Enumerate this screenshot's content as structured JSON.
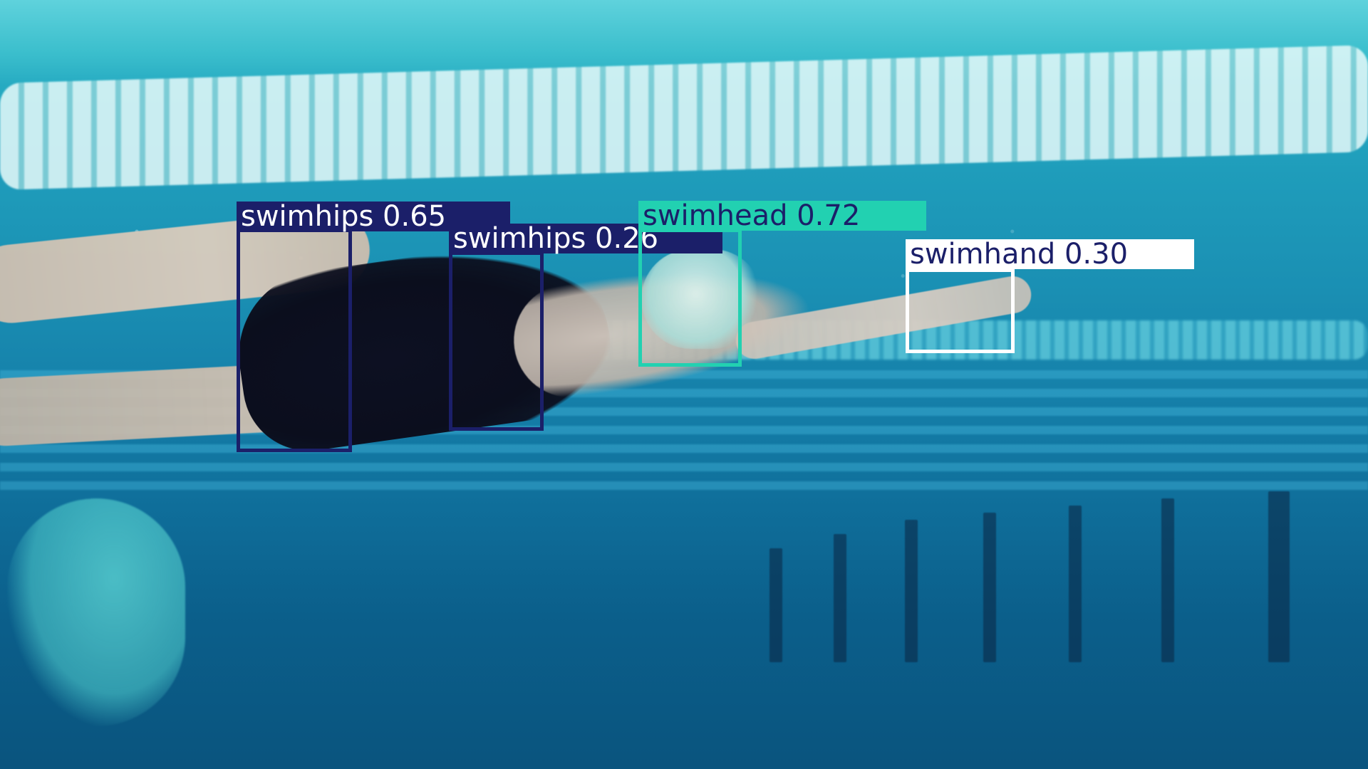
{
  "detections": [
    {
      "label": "swimhips 0.65",
      "colors": {
        "box": "#1b1f69",
        "label_bg": "#1b1f69",
        "label_text": "#ffffff"
      }
    },
    {
      "label": "swimhips 0.26",
      "colors": {
        "box": "#1b1f69",
        "label_bg": "#1b1f69",
        "label_text": "#ffffff"
      }
    },
    {
      "label": "swimhead 0.72",
      "colors": {
        "box": "#22d1b1",
        "label_bg": "#22d1b1",
        "label_text": "#1b1f69"
      }
    },
    {
      "label": "swimhand 0.30",
      "colors": {
        "box": "#ffffff",
        "label_bg": "#ffffff",
        "label_text": "#1b1f69"
      }
    }
  ]
}
